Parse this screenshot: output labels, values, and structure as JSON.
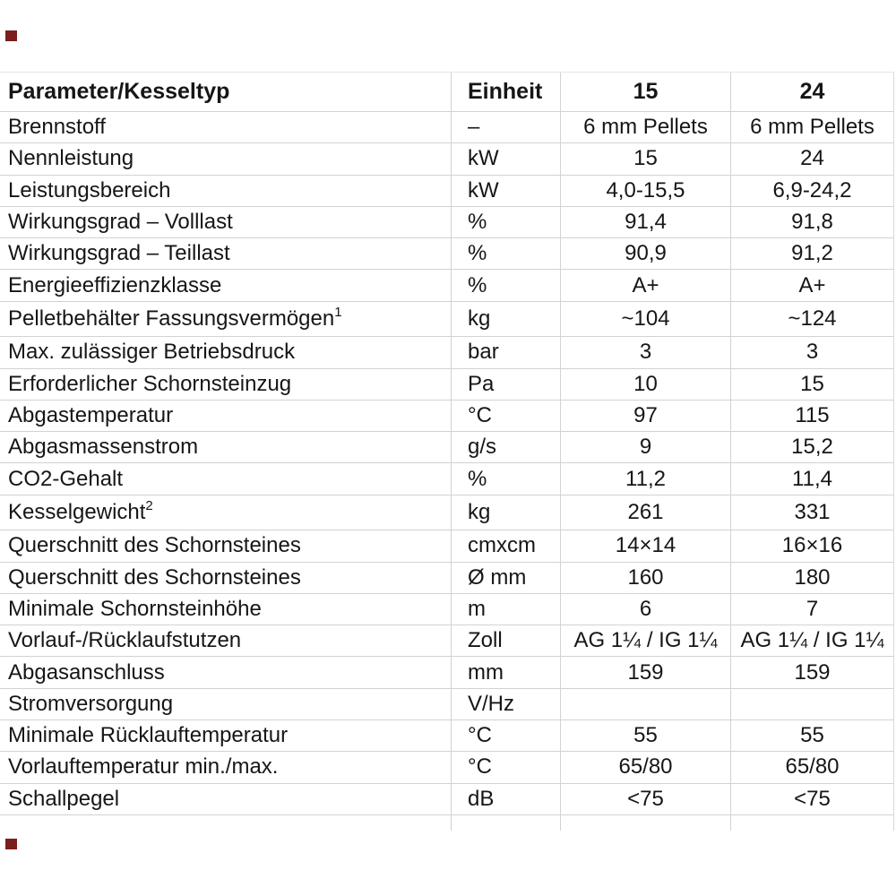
{
  "page": {
    "background": "#ffffff",
    "gridline_color": "#d2d2d2",
    "text_color": "#161616",
    "marker_color": "#7b1e1e"
  },
  "table": {
    "headers": {
      "parameter": "Parameter/Kesseltyp",
      "unit": "Einheit",
      "col15": "15",
      "col24": "24"
    },
    "rows": [
      {
        "parameter": "Brennstoff",
        "unit": "–",
        "v15": "6 mm Pellets",
        "v24": "6 mm Pellets"
      },
      {
        "parameter": "Nennleistung",
        "unit": "kW",
        "v15": "15",
        "v24": "24"
      },
      {
        "parameter": "Leistungsbereich",
        "unit": "kW",
        "v15": "4,0-15,5",
        "v24": "6,9-24,2"
      },
      {
        "parameter": "Wirkungsgrad – Volllast",
        "unit": "%",
        "v15": "91,4",
        "v24": "91,8"
      },
      {
        "parameter": "Wirkungsgrad – Teillast",
        "unit": "%",
        "v15": "90,9",
        "v24": "91,2"
      },
      {
        "parameter": "Energieeffizienzklasse",
        "unit": "%",
        "v15": "A+",
        "v24": "A+"
      },
      {
        "parameter": "Pelletbehälter Fassungsvermögen",
        "sup": "1",
        "unit": "kg",
        "v15": "~104",
        "v24": "~124"
      },
      {
        "parameter": "Max. zulässiger Betriebsdruck",
        "unit": "bar",
        "v15": "3",
        "v24": "3"
      },
      {
        "parameter": "Erforderlicher Schornsteinzug",
        "unit": "Pa",
        "v15": "10",
        "v24": "15"
      },
      {
        "parameter": "Abgastemperatur",
        "unit": "°C",
        "v15": "97",
        "v24": "115"
      },
      {
        "parameter": "Abgasmassenstrom",
        "unit": "g/s",
        "v15": "9",
        "v24": "15,2"
      },
      {
        "parameter": "CO2-Gehalt",
        "unit": "%",
        "v15": "11,2",
        "v24": "11,4"
      },
      {
        "parameter": "Kesselgewicht",
        "sup": "2",
        "unit": "kg",
        "v15": "261",
        "v24": "331"
      },
      {
        "parameter": "Querschnitt des Schornsteines",
        "unit": "cmxcm",
        "v15": "14×14",
        "v24": "16×16"
      },
      {
        "parameter": "Querschnitt des Schornsteines",
        "unit": "Ø mm",
        "v15": "160",
        "v24": "180"
      },
      {
        "parameter": "Minimale Schornsteinhöhe",
        "unit": "m",
        "v15": "6",
        "v24": "7"
      },
      {
        "parameter": "Vorlauf-/Rücklaufstutzen",
        "unit": "Zoll",
        "v15": "AG 1¼ / IG 1¼",
        "v24": "AG 1¼ / IG 1¼"
      },
      {
        "parameter": "Abgasanschluss",
        "unit": "mm",
        "v15": "159",
        "v24": "159"
      },
      {
        "parameter": "Stromversorgung",
        "unit": "V/Hz",
        "v15": "",
        "v24": ""
      },
      {
        "parameter": "Minimale Rücklauftemperatur",
        "unit": "°C",
        "v15": "55",
        "v24": "55"
      },
      {
        "parameter": "Vorlauftemperatur min./max.",
        "unit": "°C",
        "v15": "65/80",
        "v24": "65/80"
      },
      {
        "parameter": "Schallpegel",
        "unit": "dB",
        "v15": "<75",
        "v24": "<75"
      }
    ]
  }
}
